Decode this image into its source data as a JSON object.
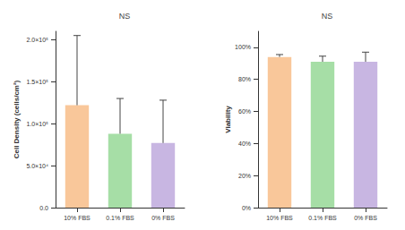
{
  "chart_data": [
    {
      "type": "bar",
      "title": "NS",
      "categories": [
        "10% FBS",
        "0.1% FBS",
        "0% FBS"
      ],
      "values": [
        122000,
        88000,
        77000
      ],
      "errors": [
        83000,
        42000,
        51000
      ],
      "colors": [
        "#f9c79a",
        "#a6dea6",
        "#c8b6e2"
      ],
      "ylabel": "Cell Density (cells/cm²)",
      "ylim": [
        0,
        210000
      ],
      "yticks": [
        {
          "value": 0,
          "label": "0.0"
        },
        {
          "value": 50000,
          "label": "5.0×10⁴"
        },
        {
          "value": 100000,
          "label": "1.0×10⁵"
        },
        {
          "value": 150000,
          "label": "1.5×10⁵"
        },
        {
          "value": 200000,
          "label": "2.0×10⁵"
        }
      ],
      "grid": false
    },
    {
      "type": "bar",
      "title": "NS",
      "categories": [
        "10% FBS",
        "0.1% FBS",
        "0% FBS"
      ],
      "values": [
        94,
        91,
        91
      ],
      "errors": [
        1.5,
        3.5,
        6
      ],
      "colors": [
        "#f9c79a",
        "#a6dea6",
        "#c8b6e2"
      ],
      "ylabel": "Viability",
      "ylim": [
        0,
        110
      ],
      "yticks": [
        {
          "value": 0,
          "label": "0%"
        },
        {
          "value": 20,
          "label": "20%"
        },
        {
          "value": 40,
          "label": "40%"
        },
        {
          "value": 60,
          "label": "60%"
        },
        {
          "value": 80,
          "label": "80%"
        },
        {
          "value": 100,
          "label": "100%"
        }
      ],
      "grid": false
    }
  ]
}
